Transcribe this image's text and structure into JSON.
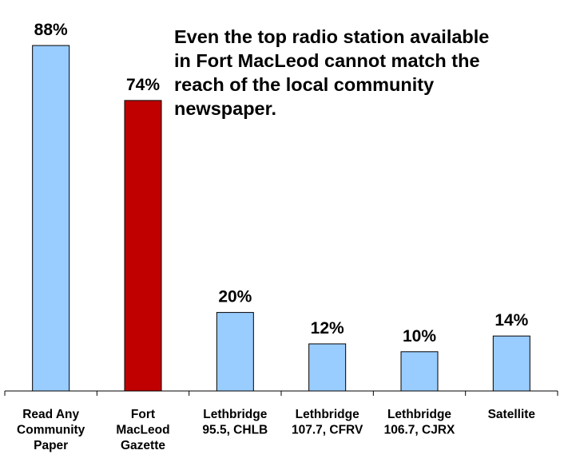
{
  "chart_data": {
    "type": "bar",
    "categories": [
      [
        "Read Any",
        "Community",
        "Paper"
      ],
      [
        "Fort",
        "MacLeod",
        "Gazette"
      ],
      [
        "Lethbridge",
        "95.5, CHLB"
      ],
      [
        "Lethbridge",
        "107.7, CFRV"
      ],
      [
        "Lethbridge",
        "106.7, CJRX"
      ],
      [
        "Satellite"
      ]
    ],
    "values": [
      88,
      74,
      20,
      12,
      10,
      14
    ],
    "data_labels": [
      "88%",
      "74%",
      "20%",
      "12%",
      "10%",
      "14%"
    ],
    "ylim": [
      0,
      100
    ],
    "grid": false,
    "legend": "none",
    "title": "",
    "xlabel": "",
    "ylabel": "",
    "colors": {
      "default_bar": "#99ccff",
      "highlight_bar": "#c00000",
      "bar_outline": "#000000"
    },
    "highlight_index": 1,
    "annotation_lines": [
      "Even the top radio station available",
      "in Fort MacLeod cannot match the",
      "reach of the local community",
      "newspaper."
    ]
  }
}
